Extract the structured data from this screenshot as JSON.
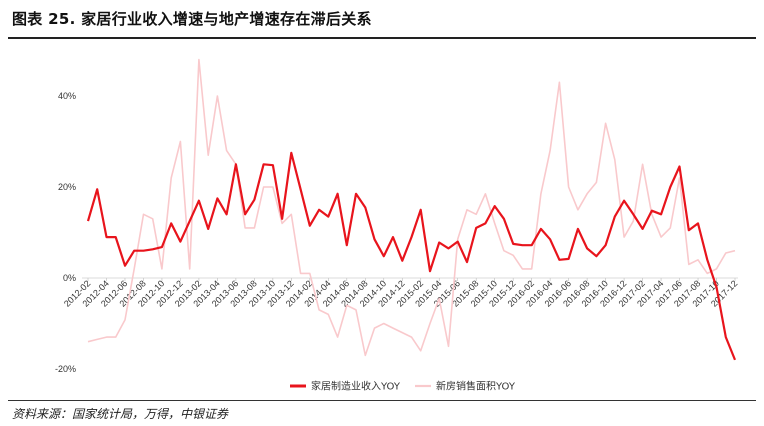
{
  "header": {
    "title": "图表 25. 家居行业收入增速与地产增速存在滞后关系"
  },
  "footer": {
    "source": "资料来源：国家统计局，万得，中银证券"
  },
  "chart_data": {
    "type": "line",
    "title": "",
    "xlabel": "",
    "ylabel": "",
    "ylim": [
      -20,
      40
    ],
    "ytick_labels": [
      "40%",
      "20%",
      "0%",
      "-20%"
    ],
    "ytick_values": [
      40,
      20,
      0,
      -20
    ],
    "grid": false,
    "legend_position": "bottom-center",
    "x": [
      "2012-02",
      "2012-03",
      "2012-04",
      "2012-05",
      "2012-06",
      "2012-07",
      "2012-08",
      "2012-09",
      "2012-10",
      "2012-11",
      "2012-12",
      "2013-01",
      "2013-02",
      "2013-03",
      "2013-04",
      "2013-05",
      "2013-06",
      "2013-07",
      "2013-08",
      "2013-09",
      "2013-10",
      "2013-11",
      "2013-12",
      "2014-01",
      "2014-02",
      "2014-03",
      "2014-04",
      "2014-05",
      "2014-06",
      "2014-07",
      "2014-08",
      "2014-09",
      "2014-10",
      "2014-11",
      "2014-12",
      "2015-01",
      "2015-02",
      "2015-03",
      "2015-04",
      "2015-05",
      "2015-06",
      "2015-07",
      "2015-08",
      "2015-09",
      "2015-10",
      "2015-11",
      "2015-12",
      "2016-01",
      "2016-02",
      "2016-03",
      "2016-04",
      "2016-05",
      "2016-06",
      "2016-07",
      "2016-08",
      "2016-09",
      "2016-10",
      "2016-11",
      "2016-12",
      "2017-01",
      "2017-02",
      "2017-03",
      "2017-04",
      "2017-05",
      "2017-06",
      "2017-07",
      "2017-08",
      "2017-09",
      "2017-10",
      "2017-11",
      "2017-12"
    ],
    "x_tick_labels": [
      "2012-02",
      "2012-04",
      "2012-06",
      "2012-08",
      "2012-10",
      "2012-12",
      "2013-02",
      "2013-04",
      "2013-06",
      "2013-08",
      "2013-10",
      "2013-12",
      "2014-02",
      "2014-04",
      "2014-06",
      "2014-08",
      "2014-10",
      "2014-12",
      "2015-02",
      "2015-04",
      "2015-06",
      "2015-08",
      "2015-10",
      "2015-12",
      "2016-02",
      "2016-04",
      "2016-06",
      "2016-08",
      "2016-10",
      "2016-12",
      "2017-02",
      "2017-04",
      "2017-06",
      "2017-08",
      "2017-10",
      "2017-12"
    ],
    "series": [
      {
        "name": "家居制造业收入YOY",
        "color": "#e8141c",
        "values": [
          12.5,
          19.5,
          9,
          9,
          2.7,
          6,
          6,
          6.3,
          6.8,
          12,
          8,
          12.5,
          17,
          10.8,
          17.5,
          14,
          25,
          14,
          17.2,
          25,
          24.8,
          13,
          27.5,
          19.5,
          11.5,
          15,
          13.5,
          18.5,
          7.2,
          18.5,
          15.5,
          8.5,
          4.8,
          9,
          3.8,
          9,
          15,
          1.5,
          7.8,
          6.5,
          8,
          3.5,
          11,
          12,
          15.8,
          13,
          7.5,
          7.2,
          7.2,
          10.8,
          8.5,
          4,
          4.2,
          10.8,
          6.5,
          4.8,
          7.2,
          13.5,
          17,
          14,
          10.8,
          14.8,
          14,
          20,
          24.5,
          10.5,
          12,
          4,
          -2,
          -13,
          -18
        ]
      },
      {
        "name": "新房销售面积YOY",
        "color": "#f9c9cc",
        "values": [
          -14,
          -13.5,
          -13,
          -13,
          -9.2,
          2,
          14,
          13,
          2,
          22,
          30,
          2,
          48,
          27,
          40,
          28,
          25,
          11,
          11,
          20,
          20,
          12,
          14,
          1,
          1,
          -7,
          -8,
          -13,
          -6,
          -7,
          -17,
          -11,
          -10,
          -11,
          -12,
          -13,
          -16,
          -10,
          -4.5,
          -15,
          8.5,
          15,
          14,
          18.5,
          12,
          6,
          5,
          2,
          2,
          18.5,
          28,
          43,
          20,
          15,
          18.5,
          21,
          34,
          26,
          9,
          12.5,
          25,
          14,
          9,
          11,
          22,
          3,
          4,
          1,
          2,
          5.5,
          6
        ]
      }
    ]
  }
}
